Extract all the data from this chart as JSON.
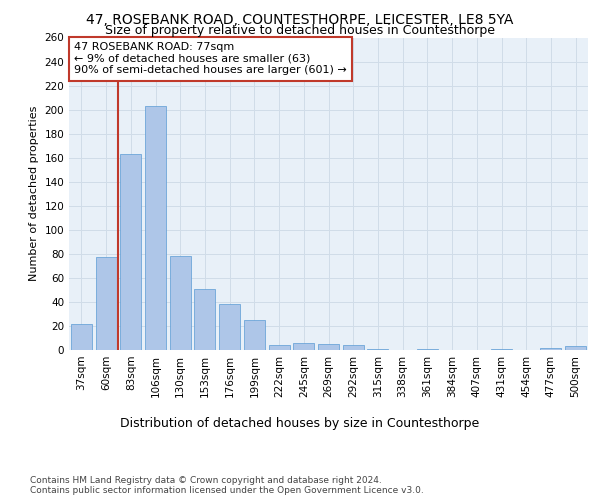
{
  "title1": "47, ROSEBANK ROAD, COUNTESTHORPE, LEICESTER, LE8 5YA",
  "title2": "Size of property relative to detached houses in Countesthorpe",
  "xlabel": "Distribution of detached houses by size in Countesthorpe",
  "ylabel": "Number of detached properties",
  "categories": [
    "37sqm",
    "60sqm",
    "83sqm",
    "106sqm",
    "130sqm",
    "153sqm",
    "176sqm",
    "199sqm",
    "222sqm",
    "245sqm",
    "269sqm",
    "292sqm",
    "315sqm",
    "338sqm",
    "361sqm",
    "384sqm",
    "407sqm",
    "431sqm",
    "454sqm",
    "477sqm",
    "500sqm"
  ],
  "values": [
    22,
    77,
    163,
    203,
    78,
    51,
    38,
    25,
    4,
    6,
    5,
    4,
    1,
    0,
    1,
    0,
    0,
    1,
    0,
    2,
    3
  ],
  "bar_color": "#aec6e8",
  "bar_edge_color": "#5b9bd5",
  "vline_x_index": 1,
  "vline_color": "#c0392b",
  "annotation_text": "47 ROSEBANK ROAD: 77sqm\n← 9% of detached houses are smaller (63)\n90% of semi-detached houses are larger (601) →",
  "annotation_box_color": "#c0392b",
  "ylim": [
    0,
    260
  ],
  "yticks": [
    0,
    20,
    40,
    60,
    80,
    100,
    120,
    140,
    160,
    180,
    200,
    220,
    240,
    260
  ],
  "grid_color": "#d0dce8",
  "background_color": "#e8f0f8",
  "footer": "Contains HM Land Registry data © Crown copyright and database right 2024.\nContains public sector information licensed under the Open Government Licence v3.0.",
  "title1_fontsize": 10,
  "title2_fontsize": 9,
  "xlabel_fontsize": 9,
  "ylabel_fontsize": 8,
  "tick_fontsize": 7.5,
  "footer_fontsize": 6.5,
  "ann_fontsize": 8
}
